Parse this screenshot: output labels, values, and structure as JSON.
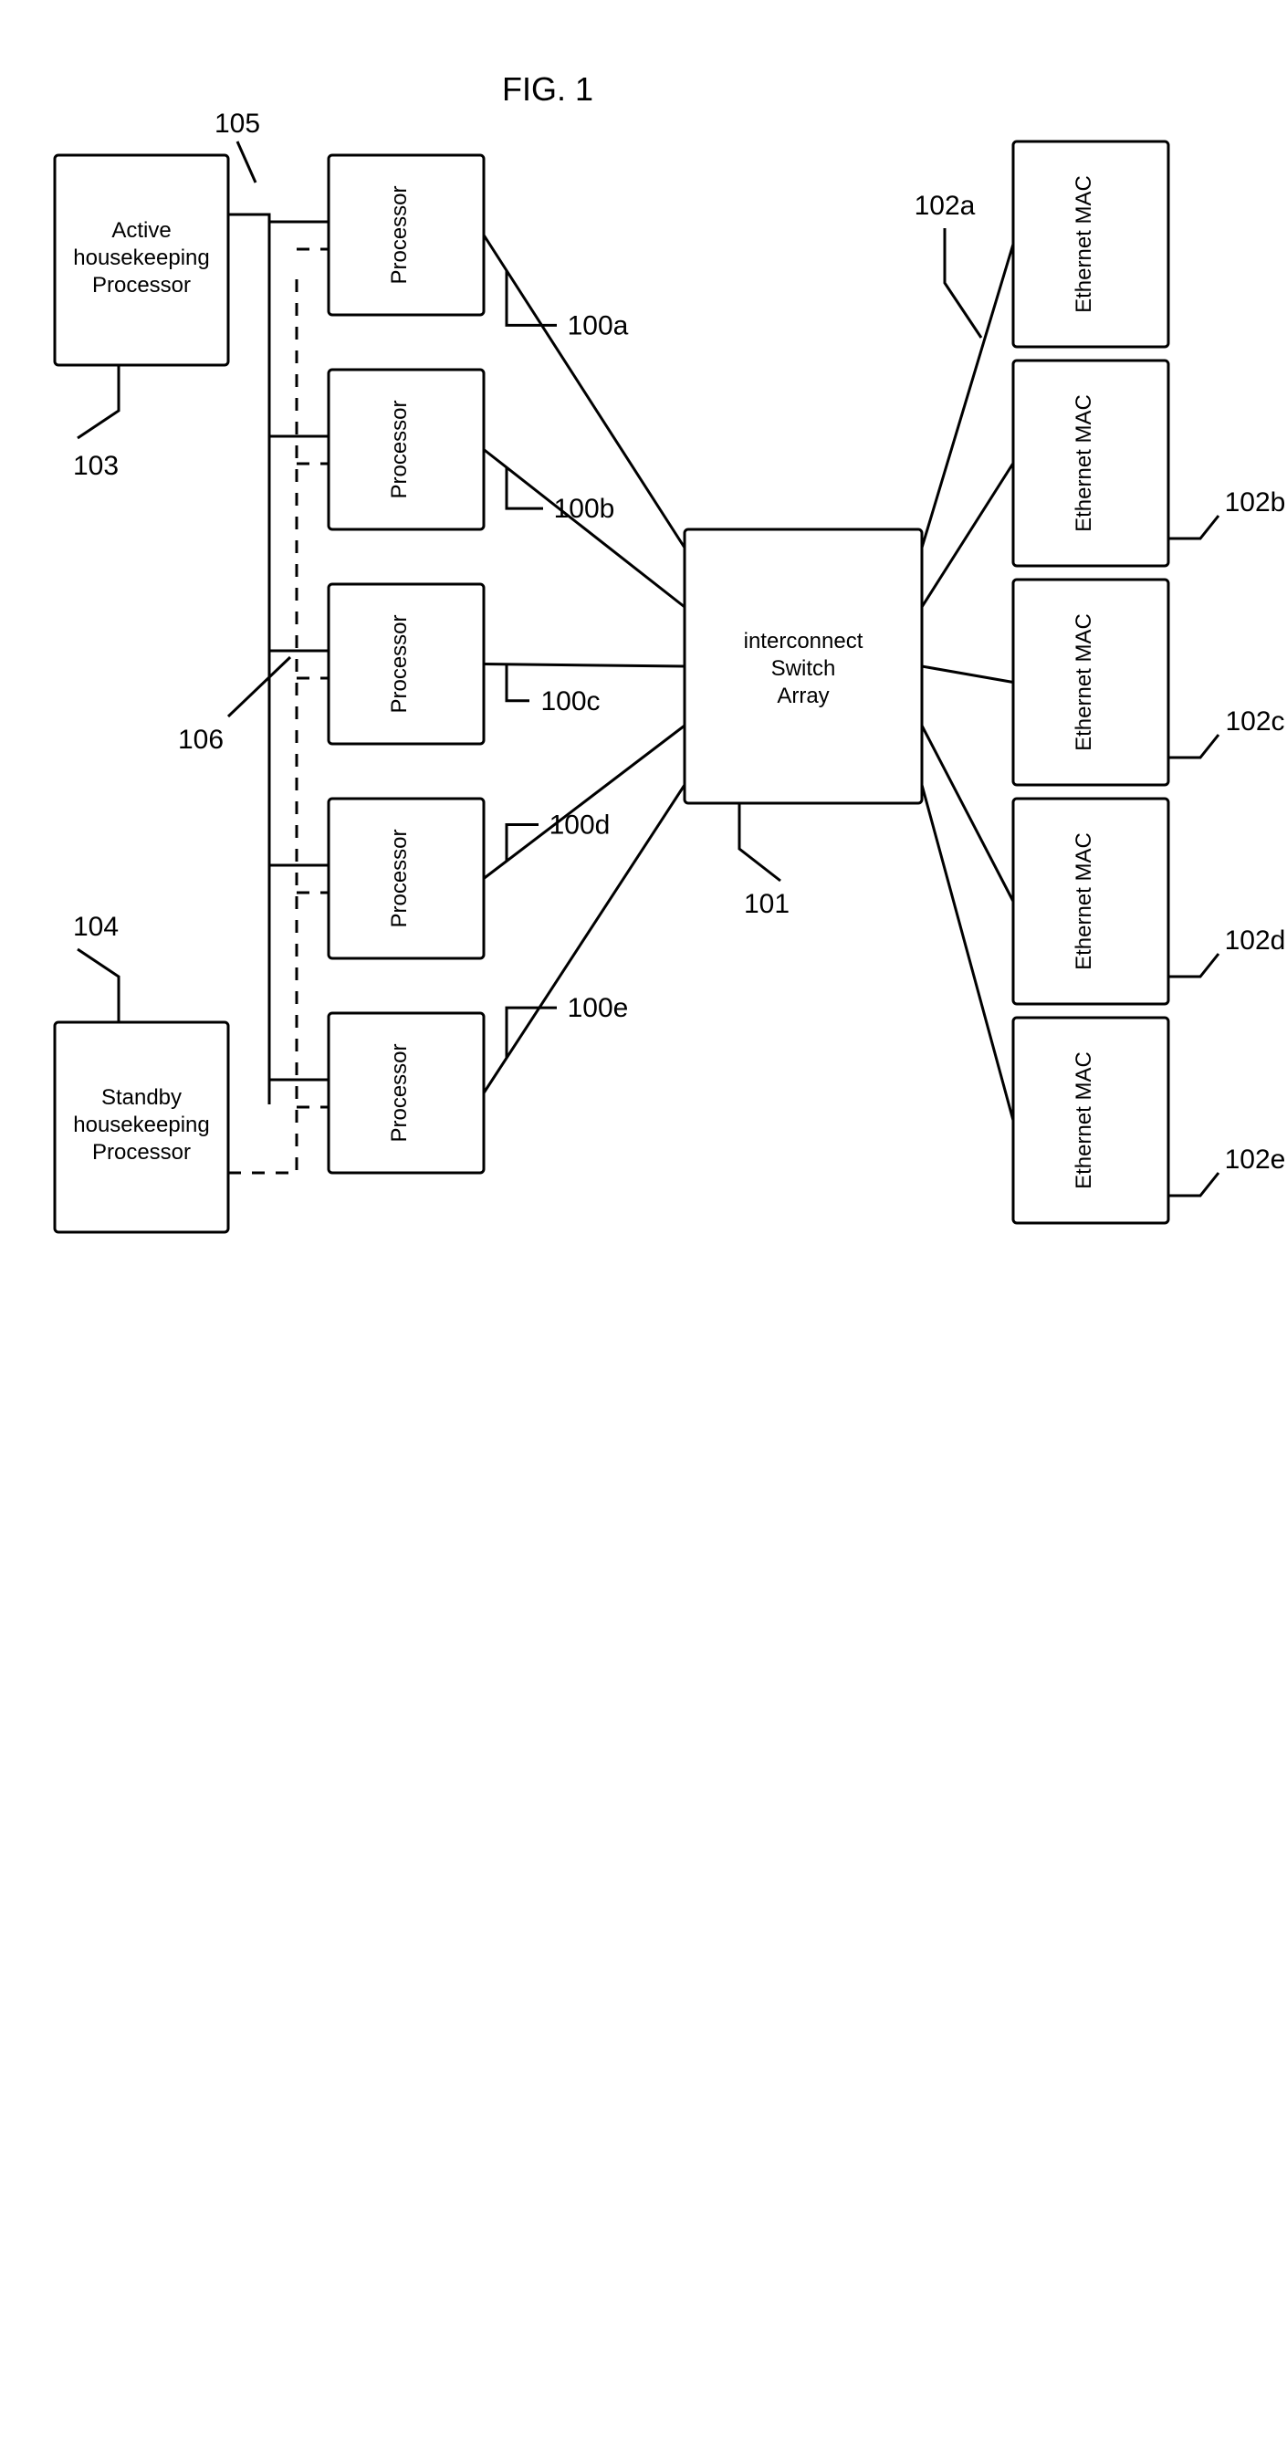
{
  "figure": {
    "title": "FIG. 1",
    "title_fontsize": 36,
    "background": "#ffffff",
    "stroke": "#000000",
    "stroke_width": 3,
    "box_fontsize": 24,
    "ref_fontsize": 30
  },
  "hk_active": {
    "lines": [
      "Active",
      "housekeeping",
      "Processor"
    ],
    "ref": "103"
  },
  "hk_standby": {
    "lines": [
      "Standby",
      "housekeeping",
      "Processor"
    ],
    "ref": "104"
  },
  "bus_active": {
    "ref": "105"
  },
  "bus_standby": {
    "ref": "106"
  },
  "processors": [
    {
      "label": "Processor",
      "ref": "100a"
    },
    {
      "label": "Processor",
      "ref": "100b"
    },
    {
      "label": "Processor",
      "ref": "100c"
    },
    {
      "label": "Processor",
      "ref": "100d"
    },
    {
      "label": "Processor",
      "ref": "100e"
    }
  ],
  "switch": {
    "lines": [
      "interconnect",
      "Switch",
      "Array"
    ],
    "ref": "101"
  },
  "macs": [
    {
      "label": "Ethernet MAC",
      "ref": "102a"
    },
    {
      "label": "Ethernet MAC",
      "ref": "102b"
    },
    {
      "label": "Ethernet MAC",
      "ref": "102c"
    },
    {
      "label": "Ethernet MAC",
      "ref": "102d"
    },
    {
      "label": "Ethernet MAC",
      "ref": "102e"
    }
  ]
}
